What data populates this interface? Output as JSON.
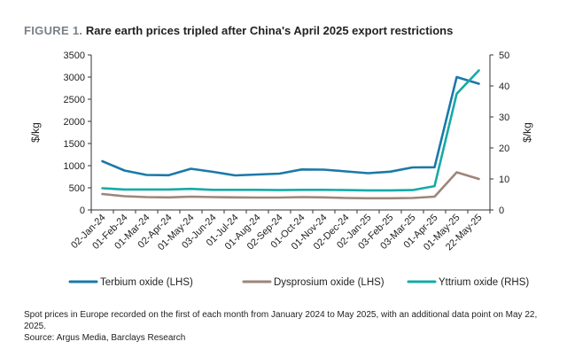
{
  "figure": {
    "label": "FIGURE 1.",
    "title": "Rare earth prices tripled after China's April 2025 export restrictions"
  },
  "notes": {
    "line1": "Spot prices in Europe recorded on the first of each month from January 2024 to May 2025, with an additional data point on May 22, 2025.",
    "line2": "Source: Argus Media, Barclays Research"
  },
  "colors": {
    "terbium": "#1a79a8",
    "dysprosium": "#9e857a",
    "yttrium": "#16aaa6"
  },
  "chart_data": {
    "type": "line",
    "title": "Rare earth prices tripled after China's April 2025 export restrictions",
    "xlabel": "",
    "ylabel": "$/kg",
    "ylabel_right": "$/kg",
    "ylim": [
      0,
      3500
    ],
    "ylim_right": [
      0,
      50
    ],
    "yticks": [
      0,
      500,
      1000,
      1500,
      2000,
      2500,
      3000,
      3500
    ],
    "yticks_right": [
      0,
      10,
      20,
      30,
      40,
      50
    ],
    "grid": false,
    "legend": "bottom",
    "categories": [
      "02-Jan-24",
      "01-Feb-24",
      "01-Mar-24",
      "02-Apr-24",
      "01-May-24",
      "03-Jun-24",
      "01-Jul-24",
      "01-Aug-24",
      "02-Sep-24",
      "01-Oct-24",
      "01-Nov-24",
      "02-Dec-24",
      "02-Jan-25",
      "03-Feb-25",
      "03-Mar-25",
      "01-Apr-25",
      "01-May-25",
      "22-May-25"
    ],
    "series": [
      {
        "name": "Terbium oxide (LHS)",
        "axis": "left",
        "color": "#1a79a8",
        "values": [
          1100,
          890,
          790,
          785,
          930,
          860,
          780,
          800,
          820,
          915,
          910,
          870,
          830,
          865,
          960,
          965,
          3000,
          2850
        ]
      },
      {
        "name": "Dysprosium oxide (LHS)",
        "axis": "left",
        "color": "#9e857a",
        "values": [
          360,
          310,
          290,
          285,
          300,
          290,
          285,
          280,
          280,
          290,
          285,
          270,
          265,
          265,
          270,
          300,
          850,
          700
        ]
      },
      {
        "name": "Yttrium oxide (RHS)",
        "axis": "right",
        "color": "#16aaa6",
        "values": [
          7,
          6.6,
          6.6,
          6.6,
          6.8,
          6.5,
          6.5,
          6.5,
          6.4,
          6.5,
          6.5,
          6.4,
          6.3,
          6.3,
          6.4,
          7.7,
          37.5,
          45
        ]
      }
    ]
  }
}
